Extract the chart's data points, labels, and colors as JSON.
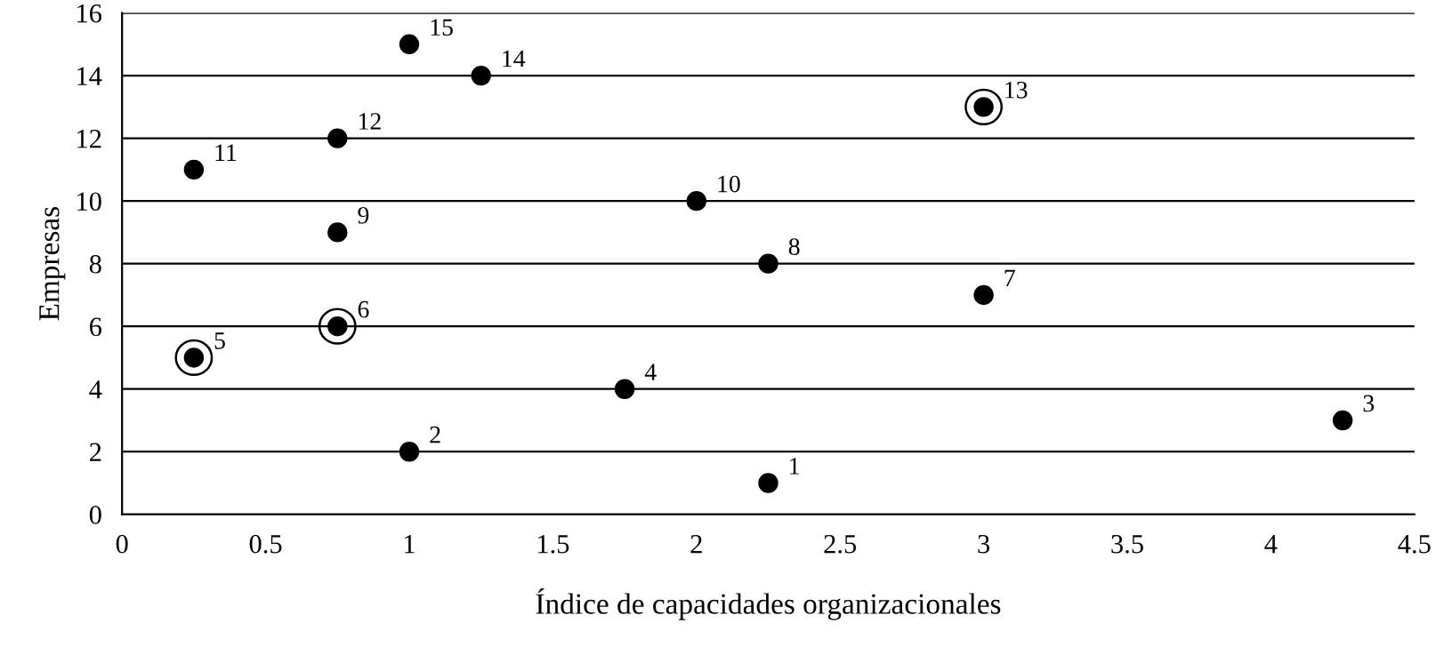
{
  "chart_data": {
    "type": "scatter",
    "xlabel": "Índice de capacidades organizacionales",
    "ylabel": "Empresas",
    "series": [
      {
        "color": "#000000",
        "x": [
          2.25,
          1.0,
          4.25,
          1.75,
          3.0,
          2.25,
          0.75,
          2.0,
          0.25,
          0.75,
          1.25,
          1.0
        ],
        "values": [
          1,
          2,
          3,
          4,
          7,
          8,
          9,
          10,
          11,
          12,
          14,
          15
        ]
      },
      {
        "type": "scatter",
        "color": "#000000",
        "x": [
          0.25,
          0.75,
          3.0
        ],
        "values": [
          5,
          6,
          13
        ]
      }
    ],
    "annotations": [
      {
        "text": "1",
        "x": 2.25,
        "y": 1
      },
      {
        "text": "2",
        "x": 1.0,
        "y": 2
      },
      {
        "text": "3",
        "x": 4.25,
        "y": 3
      },
      {
        "text": "4",
        "x": 1.75,
        "y": 4
      },
      {
        "text": "5",
        "x": 0.25,
        "y": 5
      },
      {
        "text": "6",
        "x": 0.75,
        "y": 6
      },
      {
        "text": "7",
        "x": 3.0,
        "y": 7
      },
      {
        "text": "8",
        "x": 2.25,
        "y": 8
      },
      {
        "text": "9",
        "x": 0.75,
        "y": 9
      },
      {
        "text": "10",
        "x": 2.0,
        "y": 10
      },
      {
        "text": "11",
        "x": 0.25,
        "y": 11
      },
      {
        "text": "12",
        "x": 0.75,
        "y": 12
      },
      {
        "text": "13",
        "x": 3.0,
        "y": 13
      },
      {
        "text": "14",
        "x": 1.25,
        "y": 14
      },
      {
        "text": "15",
        "x": 1.0,
        "y": 15
      }
    ],
    "xlim": [
      0,
      4.5
    ],
    "xticks": [
      0,
      0.5,
      1,
      1.5,
      2,
      2.5,
      3,
      3.5,
      4,
      4.5
    ],
    "ylim": [
      0,
      16
    ],
    "yticks": [
      0,
      2,
      4,
      6,
      8,
      10,
      12,
      14,
      16
    ],
    "grid": "y",
    "marker": "circle"
  }
}
